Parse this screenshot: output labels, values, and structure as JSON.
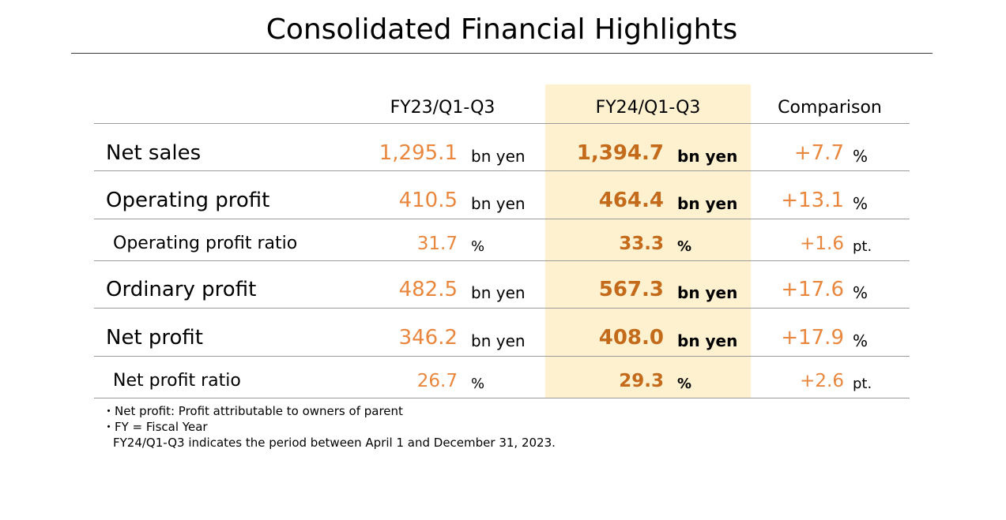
{
  "title": "Consolidated Financial Highlights",
  "columns": {
    "fy23": "FY23/Q1-Q3",
    "fy24": "FY24/Q1-Q3",
    "comparison": "Comparison"
  },
  "colors": {
    "value_orange": "#e9873e",
    "highlight_value": "#c36a1b",
    "highlight_bg": "#fef1cf",
    "rule": "#9a9a9a"
  },
  "rows": [
    {
      "label": "Net sales",
      "fy23_value": "1,295.1",
      "fy23_unit": "bn yen",
      "fy24_value": "1,394.7",
      "fy24_unit": "bn yen",
      "cmp_value": "+7.7",
      "cmp_unit": "%"
    },
    {
      "label": "Operating profit",
      "fy23_value": "410.5",
      "fy23_unit": "bn yen",
      "fy24_value": "464.4",
      "fy24_unit": "bn yen",
      "cmp_value": "+13.1",
      "cmp_unit": "%"
    },
    {
      "label": "Operating profit ratio",
      "fy23_value": "31.7",
      "fy23_unit": "%",
      "fy24_value": "33.3",
      "fy24_unit": "%",
      "cmp_value": "+1.6",
      "cmp_unit": "pt."
    },
    {
      "label": "Ordinary profit",
      "fy23_value": "482.5",
      "fy23_unit": "bn yen",
      "fy24_value": "567.3",
      "fy24_unit": "bn yen",
      "cmp_value": "+17.6",
      "cmp_unit": "%"
    },
    {
      "label": "Net profit",
      "fy23_value": "346.2",
      "fy23_unit": "bn yen",
      "fy24_value": "408.0",
      "fy24_unit": "bn yen",
      "cmp_value": "+17.9",
      "cmp_unit": "%"
    },
    {
      "label": "Net profit ratio",
      "fy23_value": "26.7",
      "fy23_unit": "%",
      "fy24_value": "29.3",
      "fy24_unit": "%",
      "cmp_value": "+2.6",
      "cmp_unit": "pt."
    }
  ],
  "notes": [
    "・Net profit: Profit attributable to owners of parent",
    "・FY = Fiscal Year",
    "FY24/Q1-Q3 indicates the period between April 1 and December 31, 2023."
  ]
}
